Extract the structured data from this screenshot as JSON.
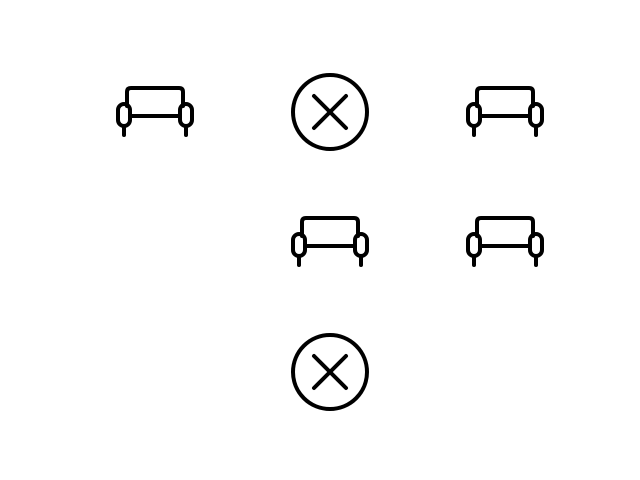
{
  "board": {
    "stroke_color": "#000000",
    "background": "#ffffff",
    "cells": [
      [
        "armchair-icon",
        "circle-x-icon",
        "armchair-icon"
      ],
      [
        "empty",
        "armchair-icon",
        "armchair-icon"
      ],
      [
        "empty",
        "circle-x-icon",
        "empty"
      ]
    ]
  }
}
